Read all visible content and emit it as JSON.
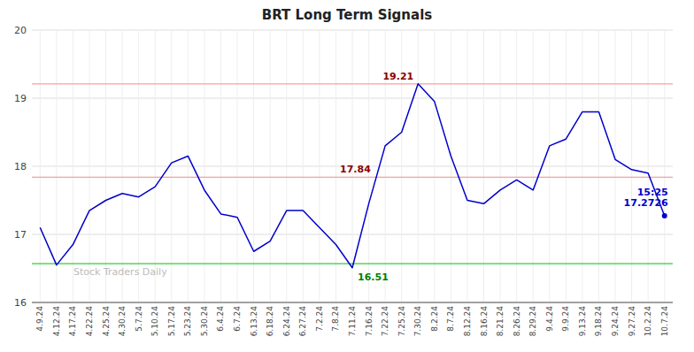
{
  "chart_data": {
    "type": "line",
    "title": "BRT Long Term Signals",
    "categories": [
      "4.9.24",
      "4.12.24",
      "4.17.24",
      "4.22.24",
      "4.25.24",
      "4.30.24",
      "5.7.24",
      "5.10.24",
      "5.17.24",
      "5.23.24",
      "5.30.24",
      "6.4.24",
      "6.7.24",
      "6.13.24",
      "6.18.24",
      "6.24.24",
      "6.27.24",
      "7.2.24",
      "7.8.24",
      "7.11.24",
      "7.16.24",
      "7.22.24",
      "7.25.24",
      "7.30.24",
      "8.2.24",
      "8.7.24",
      "8.12.24",
      "8.16.24",
      "8.21.24",
      "8.26.24",
      "8.29.24",
      "9.4.24",
      "9.9.24",
      "9.13.24",
      "9.18.24",
      "9.24.24",
      "9.27.24",
      "10.2.24",
      "10.7.24"
    ],
    "values": [
      17.1,
      16.55,
      16.85,
      17.35,
      17.5,
      17.6,
      17.55,
      17.7,
      18.05,
      18.15,
      17.65,
      17.3,
      17.25,
      16.75,
      16.9,
      17.35,
      17.35,
      17.1,
      16.85,
      16.51,
      17.45,
      18.3,
      18.5,
      19.21,
      18.95,
      18.15,
      17.5,
      17.45,
      17.65,
      17.8,
      17.65,
      18.3,
      18.4,
      18.8,
      18.8,
      18.1,
      17.95,
      17.9,
      17.2726
    ],
    "color": "#0000cc",
    "reference_lines": [
      {
        "value": 16.57,
        "color": "#33cc33"
      },
      {
        "value": 19.21,
        "color": "#f4a0a0"
      },
      {
        "value": 17.84,
        "color": "#f4a0a0"
      }
    ],
    "annotations": [
      {
        "text": [
          "19.21"
        ],
        "x": "7.30.24",
        "y": 19.21,
        "color": "darkred",
        "position": "left"
      },
      {
        "text": [
          "16.51"
        ],
        "x": "7.11.24",
        "y": 16.51,
        "color": "green",
        "position": "below"
      },
      {
        "text": [
          "17.84"
        ],
        "x": "7.11.24",
        "y": 17.84,
        "color": "darkred",
        "position": "above"
      },
      {
        "text": [
          "15:25",
          "17.2726"
        ],
        "x": "10.7.24",
        "y": 17.2726,
        "color": "#0000cc",
        "position": "current"
      }
    ],
    "watermark": "Stock Traders Daily",
    "ylim": [
      16.0,
      20.0
    ],
    "yticks": [
      16,
      17,
      18,
      19,
      20
    ],
    "grid": true
  }
}
